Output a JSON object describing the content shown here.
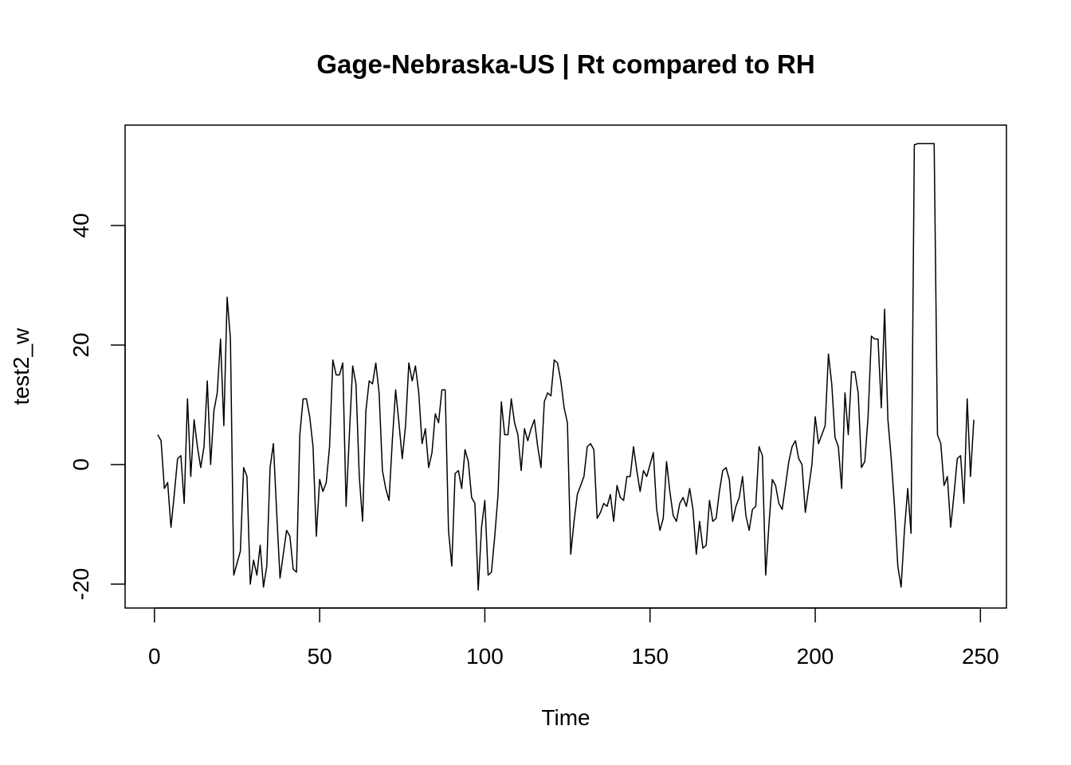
{
  "chart_data": {
    "type": "line",
    "title": "Gage-Nebraska-US | Rt compared to RH",
    "xlabel": "Time",
    "ylabel": "test2_w",
    "color": "#000000",
    "x": [
      1,
      2,
      3,
      4,
      5,
      6,
      7,
      8,
      9,
      10,
      11,
      12,
      13,
      14,
      15,
      16,
      17,
      18,
      19,
      20,
      21,
      22,
      23,
      24,
      25,
      26,
      27,
      28,
      29,
      30,
      31,
      32,
      33,
      34,
      35,
      36,
      37,
      38,
      39,
      40,
      41,
      42,
      43,
      44,
      45,
      46,
      47,
      48,
      49,
      50,
      51,
      52,
      53,
      54,
      55,
      56,
      57,
      58,
      59,
      60,
      61,
      62,
      63,
      64,
      65,
      66,
      67,
      68,
      69,
      70,
      71,
      72,
      73,
      74,
      75,
      76,
      77,
      78,
      79,
      80,
      81,
      82,
      83,
      84,
      85,
      86,
      87,
      88,
      89,
      90,
      91,
      92,
      93,
      94,
      95,
      96,
      97,
      98,
      99,
      100,
      101,
      102,
      103,
      104,
      105,
      106,
      107,
      108,
      109,
      110,
      111,
      112,
      113,
      114,
      115,
      116,
      117,
      118,
      119,
      120,
      121,
      122,
      123,
      124,
      125,
      126,
      127,
      128,
      129,
      130,
      131,
      132,
      133,
      134,
      135,
      136,
      137,
      138,
      139,
      140,
      141,
      142,
      143,
      144,
      145,
      146,
      147,
      148,
      149,
      150,
      151,
      152,
      153,
      154,
      155,
      156,
      157,
      158,
      159,
      160,
      161,
      162,
      163,
      164,
      165,
      166,
      167,
      168,
      169,
      170,
      171,
      172,
      173,
      174,
      175,
      176,
      177,
      178,
      179,
      180,
      181,
      182,
      183,
      184,
      185,
      186,
      187,
      188,
      189,
      190,
      191,
      192,
      193,
      194,
      195,
      196,
      197,
      198,
      199,
      200,
      201,
      202,
      203,
      204,
      205,
      206,
      207,
      208,
      209,
      210,
      211,
      212,
      213,
      214,
      215,
      216,
      217,
      218,
      219,
      220,
      221,
      222,
      223,
      224,
      225,
      226,
      227,
      228,
      229,
      230,
      231,
      232,
      233,
      234,
      235,
      236,
      237,
      238,
      239,
      240,
      241,
      242,
      243,
      244,
      245,
      246,
      247,
      248
    ],
    "values": [
      5,
      4,
      -4,
      -3,
      -10.5,
      -5,
      1,
      1.5,
      -6.5,
      11,
      -2,
      7.5,
      3,
      -0.5,
      3,
      14,
      0,
      9,
      12,
      21,
      6.5,
      28,
      21,
      -18.5,
      -16.5,
      -14.5,
      -0.5,
      -2,
      -20,
      -16,
      -18.5,
      -13.5,
      -20.5,
      -17,
      -0.5,
      3.5,
      -8,
      -19,
      -15,
      -11,
      -12,
      -17.5,
      -18,
      5,
      11,
      11,
      8,
      3,
      -12,
      -2.5,
      -4.5,
      -3,
      3,
      17.5,
      15,
      15,
      17,
      -7,
      5,
      16.5,
      13.5,
      -2,
      -9.5,
      9,
      14,
      13.5,
      17,
      12,
      -1,
      -4,
      -6,
      4,
      12.5,
      7,
      1,
      6.5,
      17,
      14,
      16.5,
      12,
      3.5,
      6,
      -0.5,
      2,
      8.5,
      7,
      12.5,
      12.5,
      -11,
      -17,
      -1.5,
      -1,
      -4,
      2.5,
      0.5,
      -5.5,
      -6.5,
      -21,
      -10.5,
      -6,
      -18.5,
      -18,
      -12,
      -5,
      10.5,
      5,
      5,
      11,
      7,
      5,
      -1,
      6,
      4,
      6,
      7.5,
      3,
      -0.5,
      10.5,
      12,
      11.5,
      17.5,
      17,
      14,
      9.5,
      7,
      -15,
      -9.5,
      -5,
      -3.5,
      -2,
      3,
      3.5,
      2.5,
      -9,
      -8,
      -6.5,
      -7,
      -5,
      -9.5,
      -3.5,
      -5.5,
      -6,
      -2,
      -2,
      3,
      -1,
      -4.5,
      -1,
      -2,
      0,
      2,
      -7.5,
      -11,
      -9,
      0.5,
      -4.5,
      -8.5,
      -9.5,
      -6.5,
      -5.5,
      -7,
      -4,
      -7.5,
      -15,
      -9.5,
      -14,
      -13.5,
      -6,
      -9.5,
      -9,
      -4.5,
      -1,
      -0.5,
      -2.5,
      -9.5,
      -7,
      -5.5,
      -2,
      -8.5,
      -11,
      -7.5,
      -7,
      3,
      1.5,
      -18.5,
      -10,
      -2.5,
      -3.5,
      -6.5,
      -7.5,
      -3.5,
      0.5,
      3,
      4,
      1,
      0,
      -8,
      -4,
      0,
      8,
      3.5,
      5,
      6.5,
      18.5,
      13.5,
      4.5,
      3,
      -4,
      12,
      5,
      15.5,
      15.5,
      12,
      -0.5,
      0.5,
      8,
      21.5,
      21,
      21,
      9.5,
      26,
      7.5,
      1,
      -7,
      -17,
      -20.5,
      -11,
      -4,
      -11.5,
      53.5,
      53.7,
      53.7,
      53.7,
      53.7,
      53.7,
      53.7,
      5,
      3.5,
      -3.5,
      -2,
      -10.5,
      -5,
      1,
      1.5,
      -6.5,
      11,
      -2,
      7.5
    ],
    "xlim": [
      -8.88,
      257.88
    ],
    "ylim": [
      -24,
      56.8
    ],
    "xticks": [
      0,
      50,
      100,
      150,
      200,
      250
    ],
    "yticks": [
      -20,
      0,
      20,
      40
    ]
  }
}
